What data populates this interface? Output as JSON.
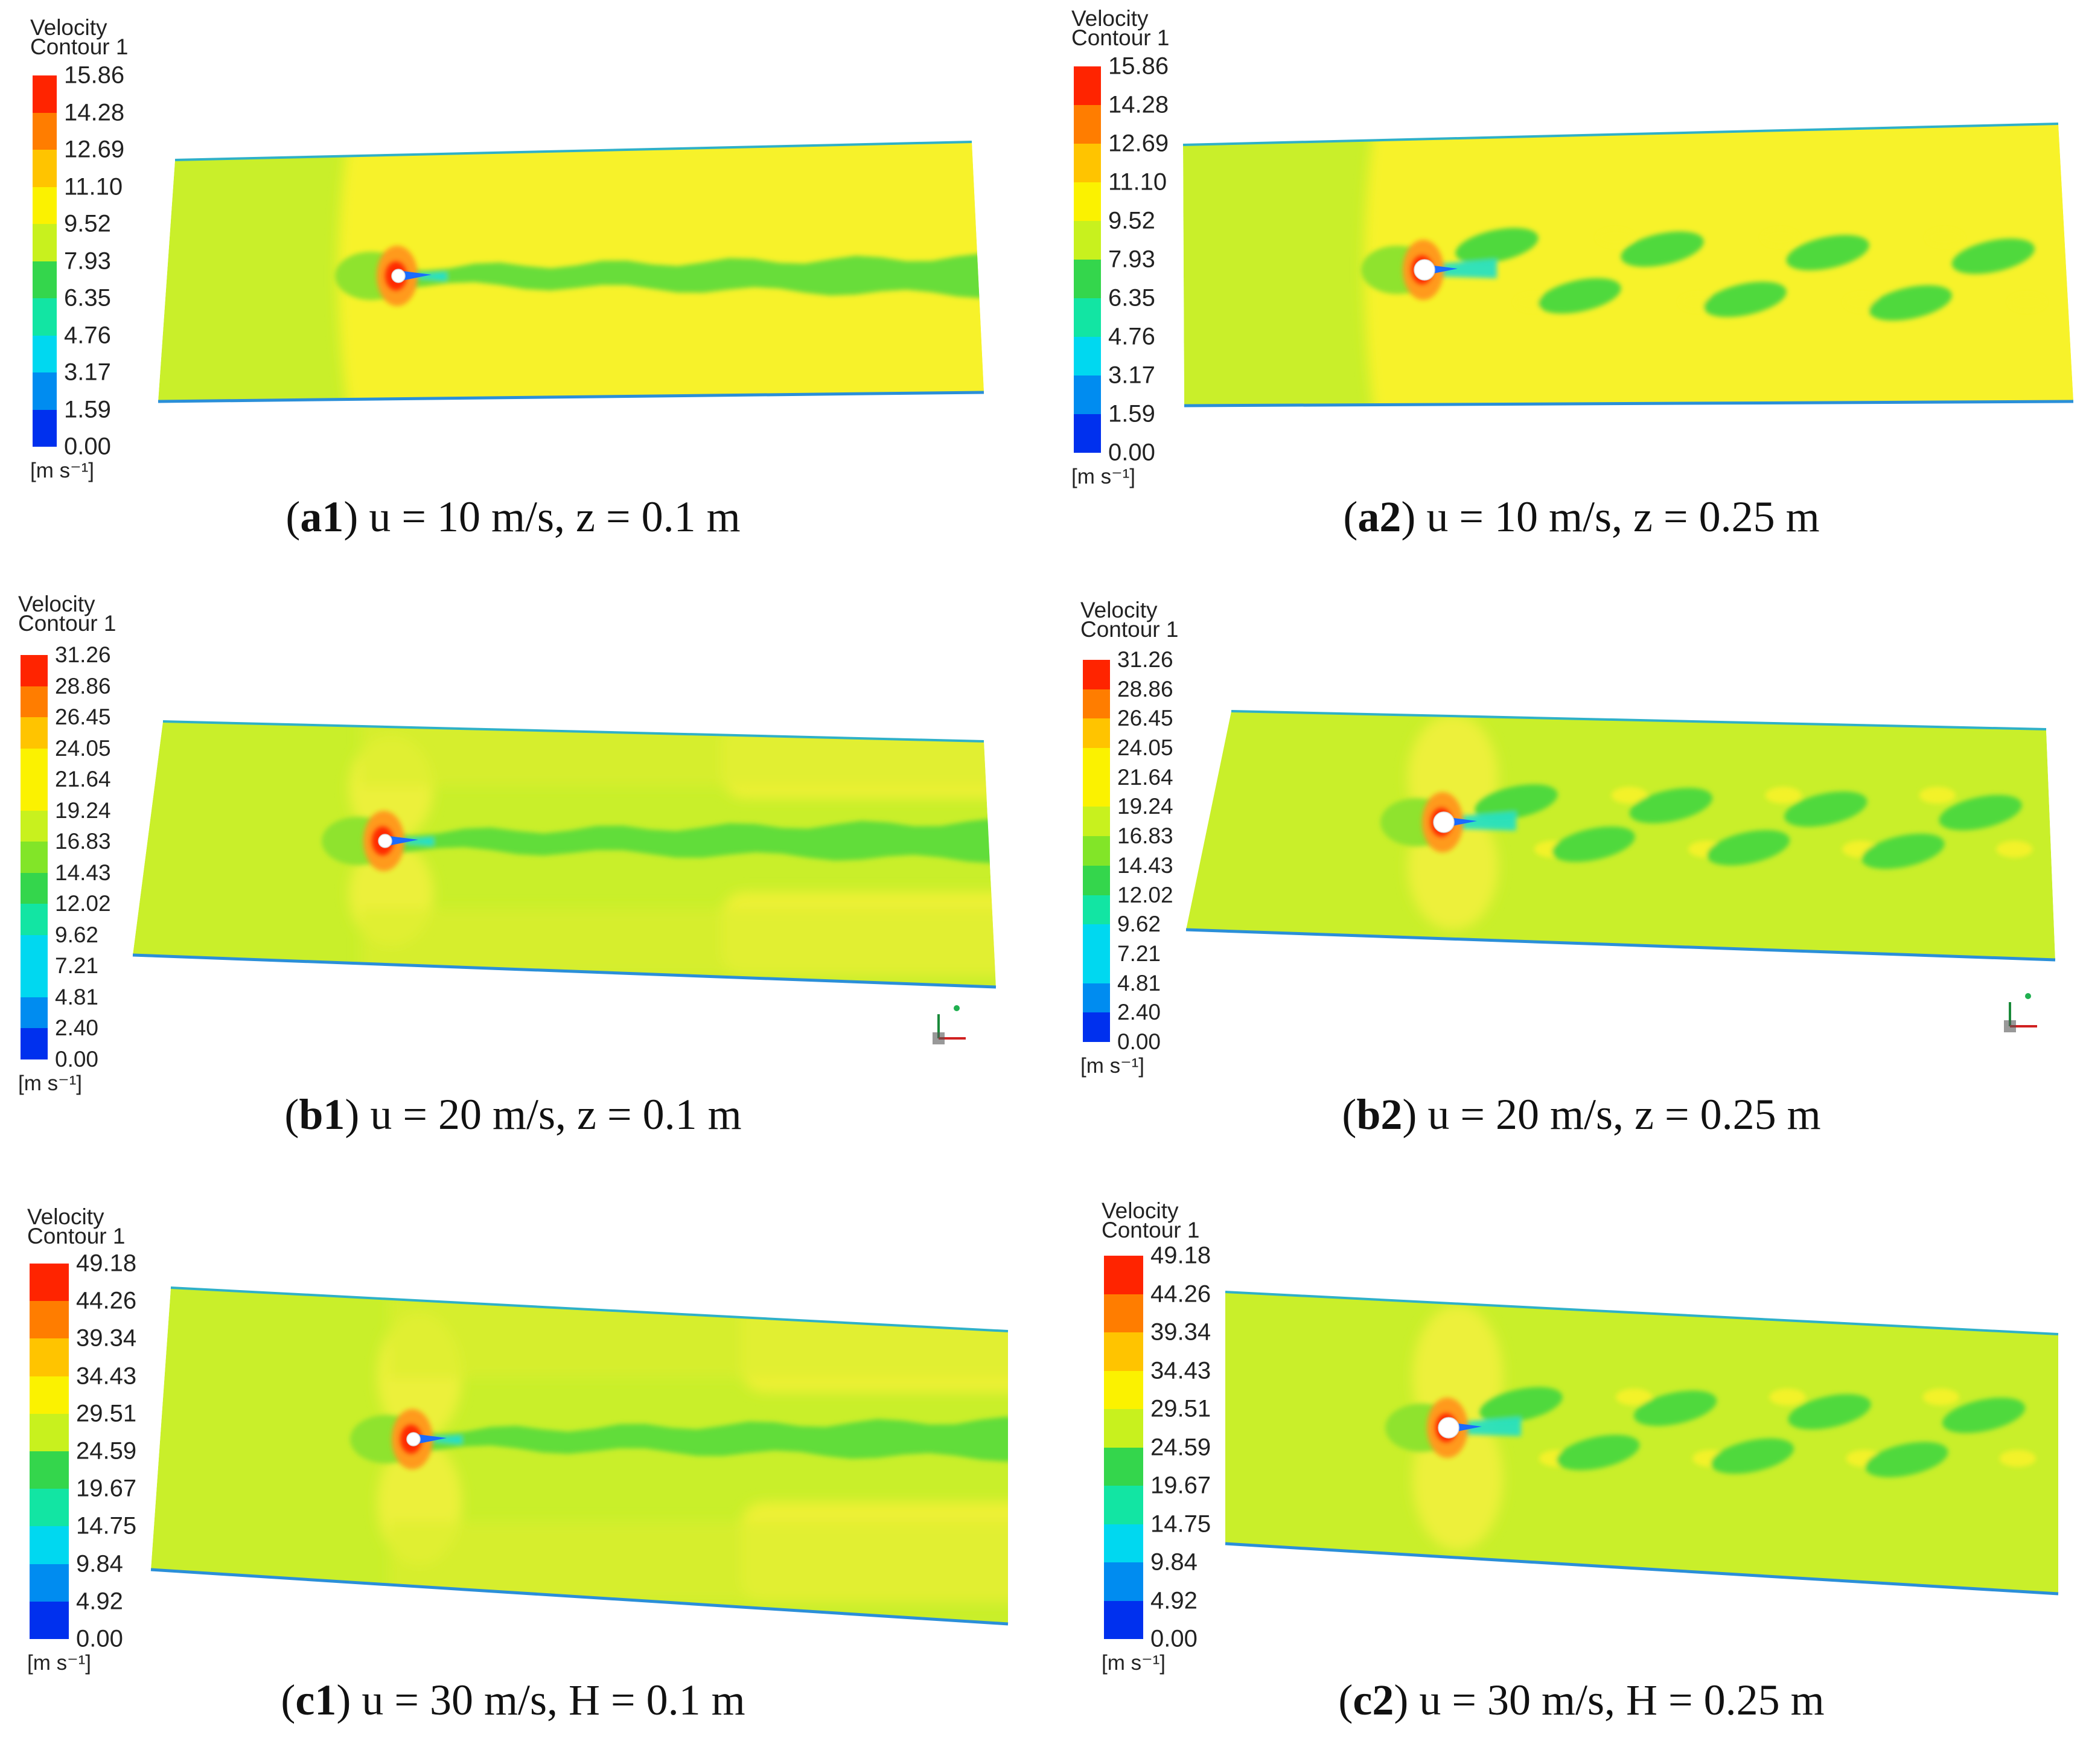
{
  "legend_title_line1": "Velocity",
  "legend_title_line2": "Contour 1",
  "unit": "[m s⁻¹]",
  "colormap": [
    "#ff2400",
    "#ff7d00",
    "#ffc400",
    "#fbf200",
    "#c8f11e",
    "#82e528",
    "#34d64c",
    "#12e5a3",
    "#00d8f0",
    "#008cf0",
    "#0030ee"
  ],
  "panels": [
    {
      "id": "a1",
      "label": "a1",
      "caption": "u = 10 m/s, z = 0.1 m",
      "ticks": [
        "15.86",
        "14.28",
        "12.69",
        "11.10",
        "9.52",
        "7.93",
        "6.35",
        "4.76",
        "3.17",
        "1.59",
        "0.00"
      ],
      "wake": "steady"
    },
    {
      "id": "a2",
      "label": "a2",
      "caption": "u = 10 m/s, z = 0.25 m",
      "ticks": [
        "15.86",
        "14.28",
        "12.69",
        "11.10",
        "9.52",
        "7.93",
        "6.35",
        "4.76",
        "3.17",
        "1.59",
        "0.00"
      ],
      "wake": "vortex-street"
    },
    {
      "id": "b1",
      "label": "b1",
      "caption": "u = 20 m/s, z = 0.1 m",
      "ticks": [
        "31.26",
        "28.86",
        "26.45",
        "24.05",
        "21.64",
        "19.24",
        "16.83",
        "14.43",
        "12.02",
        "9.62",
        "7.21",
        "4.81",
        "2.40",
        "0.00"
      ],
      "wake": "steady"
    },
    {
      "id": "b2",
      "label": "b2",
      "caption": "u = 20 m/s, z = 0.25 m",
      "ticks": [
        "31.26",
        "28.86",
        "26.45",
        "24.05",
        "21.64",
        "19.24",
        "16.83",
        "14.43",
        "12.02",
        "9.62",
        "7.21",
        "4.81",
        "2.40",
        "0.00"
      ],
      "wake": "vortex-street"
    },
    {
      "id": "c1",
      "label": "c1",
      "caption": "u = 30 m/s, H = 0.1 m",
      "ticks": [
        "49.18",
        "44.26",
        "39.34",
        "34.43",
        "29.51",
        "24.59",
        "19.67",
        "14.75",
        "9.84",
        "4.92",
        "0.00"
      ],
      "wake": "steady"
    },
    {
      "id": "c2",
      "label": "c2",
      "caption": "u = 30 m/s, H = 0.25 m",
      "ticks": [
        "49.18",
        "44.26",
        "39.34",
        "34.43",
        "29.51",
        "24.59",
        "19.67",
        "14.75",
        "9.84",
        "4.92",
        "0.00"
      ],
      "wake": "vortex-street"
    }
  ]
}
